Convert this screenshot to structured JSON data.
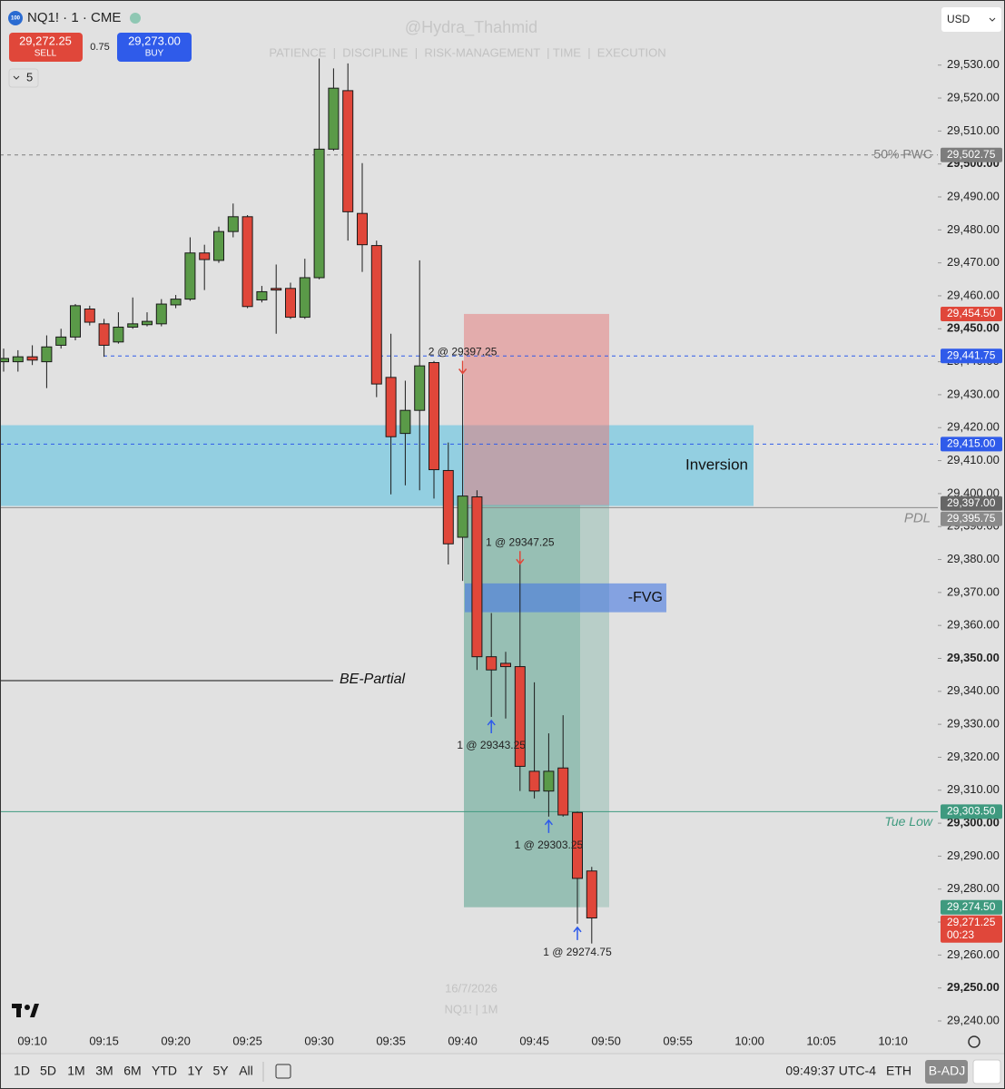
{
  "chart_data": {
    "type": "candlestick",
    "categories": [
      null,
      null,
      "09:10",
      null,
      null,
      null,
      null,
      "09:15",
      null,
      null,
      null,
      null,
      "09:20",
      null,
      null,
      null,
      null,
      "09:25",
      null,
      null,
      null,
      null,
      "09:30",
      null,
      null,
      null,
      null,
      "09:35",
      null,
      null,
      null,
      null,
      "09:40",
      null,
      null,
      null,
      null,
      "09:45",
      null,
      null,
      null,
      null,
      "09:50",
      null,
      null,
      null,
      null,
      "09:55",
      null,
      null,
      null,
      null,
      "10:00",
      null,
      null,
      null,
      null,
      "10:05",
      null,
      null,
      null,
      null,
      "10:10"
    ],
    "open": [
      29440,
      29440,
      29441.5,
      29440,
      29445,
      29447.5,
      29456,
      29451.5,
      29446,
      29450.5,
      29451.25,
      29451.5,
      29457.25,
      29459,
      29473,
      29470.75,
      29479.5,
      29484,
      29458.75,
      29462.25,
      29462.25,
      29453.5,
      29465.5,
      29504.5,
      29522.25,
      29485,
      29475.25,
      29435.25,
      29418.25,
      29425.25,
      29439.75,
      29407,
      29386.75,
      29399,
      29350.5,
      29348.5,
      29347.5,
      29315.75,
      29309.75,
      29316.75,
      29303.25,
      29285.5,
      null,
      null,
      null,
      null,
      null,
      null,
      null,
      null,
      null,
      null,
      null,
      null,
      null,
      null,
      null,
      null,
      null,
      null,
      null,
      null,
      null
    ],
    "high": [
      29444,
      29443.5,
      29445,
      29448,
      29450,
      29457.5,
      29457,
      29453,
      29455,
      29459.5,
      29455,
      29459,
      29460.25,
      29477.75,
      29475.5,
      29481,
      29488,
      29484.5,
      29463,
      29469.5,
      29464,
      29471.25,
      29532,
      29529,
      29530.5,
      29500.25,
      29476.75,
      29448.5,
      29434.25,
      29470.75,
      29440.25,
      29415.5,
      29437,
      29401,
      29363.75,
      29352,
      29379.25,
      29342.75,
      29327.25,
      29332.75,
      29303.5,
      29286.75,
      null,
      null,
      null,
      null,
      null,
      null,
      null,
      null,
      null,
      null,
      null,
      null,
      null,
      null,
      null,
      null,
      null,
      null,
      null,
      null,
      null
    ],
    "low": [
      29437,
      29437,
      29439,
      29432,
      29444,
      29446.5,
      29451,
      29441.5,
      29445.5,
      29450,
      29450.75,
      29450.75,
      29456.25,
      29458.5,
      29461.75,
      29470,
      29477.75,
      29456.25,
      29458,
      29448.5,
      29453,
      29453,
      29465,
      29504,
      29476.75,
      29467.25,
      29429.25,
      29399.75,
      29402.5,
      29401,
      29398.5,
      29378.5,
      29373.5,
      29346.5,
      29332.25,
      29331.75,
      29309.75,
      29307.5,
      29302,
      29302,
      29269.5,
      29263.5,
      null,
      null,
      null,
      null,
      null,
      null,
      null,
      null,
      null,
      null,
      null,
      null,
      null,
      null,
      null,
      null,
      null,
      null,
      null,
      null,
      null
    ],
    "close": [
      29441,
      29441.5,
      29440.5,
      29444.5,
      29447.5,
      29457,
      29452,
      29445,
      29450.5,
      29451.5,
      29452.25,
      29457.5,
      29459,
      29473,
      29471,
      29479.5,
      29484,
      29456.75,
      29461.25,
      29461.75,
      29453.5,
      29465.5,
      29504.5,
      29523,
      29485.5,
      29475.5,
      29433.25,
      29417.25,
      29425.25,
      29438.75,
      29407.25,
      29384.75,
      29399.25,
      29350.5,
      29346.5,
      29347.5,
      29317.25,
      29309.75,
      29315.75,
      29302.5,
      29283.25,
      29271.25,
      null,
      null,
      null,
      null,
      null,
      null,
      null,
      null,
      null,
      null,
      null,
      null,
      null,
      null,
      null,
      null,
      null,
      null,
      null,
      null,
      null
    ],
    "up_color": "#5a9a48",
    "down_color": "#e0473a",
    "ylim": [
      29237.25,
      29549.75
    ],
    "yticks": [
      {
        "value": 29240,
        "label": "29,240.00"
      },
      {
        "value": 29250,
        "label": "29,250.00",
        "bold": true
      },
      {
        "value": 29260,
        "label": "29,260.00"
      },
      {
        "value": 29270,
        "label": "29,270.00"
      },
      {
        "value": 29280,
        "label": "29,280.00"
      },
      {
        "value": 29290,
        "label": "29,290.00"
      },
      {
        "value": 29300,
        "label": "29,300.00",
        "bold": true
      },
      {
        "value": 29310,
        "label": "29,310.00"
      },
      {
        "value": 29320,
        "label": "29,320.00"
      },
      {
        "value": 29330,
        "label": "29,330.00"
      },
      {
        "value": 29340,
        "label": "29,340.00"
      },
      {
        "value": 29350,
        "label": "29,350.00",
        "bold": true
      },
      {
        "value": 29360,
        "label": "29,360.00"
      },
      {
        "value": 29370,
        "label": "29,370.00"
      },
      {
        "value": 29380,
        "label": "29,380.00"
      },
      {
        "value": 29390,
        "label": "29,390.00"
      },
      {
        "value": 29400,
        "label": "29,400.00"
      },
      {
        "value": 29410,
        "label": "29,410.00"
      },
      {
        "value": 29420,
        "label": "29,420.00"
      },
      {
        "value": 29430,
        "label": "29,430.00"
      },
      {
        "value": 29440,
        "label": "29,440.00"
      },
      {
        "value": 29450,
        "label": "29,450.00",
        "bold": true
      },
      {
        "value": 29460,
        "label": "29,460.00"
      },
      {
        "value": 29470,
        "label": "29,470.00"
      },
      {
        "value": 29480,
        "label": "29,480.00"
      },
      {
        "value": 29490,
        "label": "29,490.00"
      },
      {
        "value": 29500,
        "label": "29,500.00",
        "bold": true
      },
      {
        "value": 29510,
        "label": "29,510.00"
      },
      {
        "value": 29520,
        "label": "29,520.00"
      },
      {
        "value": 29530,
        "label": "29,530.00"
      }
    ],
    "zones": [
      {
        "name": "Inversion",
        "top": 29420.75,
        "bottom": 29396.25,
        "color": "#93cfe1"
      },
      {
        "top": 29454.5,
        "bottom": 29396.5,
        "color": "rgba(229,120,120,0.5)"
      },
      {
        "top": 29396.5,
        "bottom": 29274.5,
        "color": "rgba(62,150,126,0.45)"
      },
      {
        "name": "-FVG",
        "top": 29372.75,
        "bottom": 29364,
        "color": "rgba(70,120,225,0.6)"
      }
    ],
    "levels": [
      {
        "value": 29502.75,
        "value_label": "29,502.75",
        "label": "50% PWC",
        "color": "#7d7d7d",
        "style": "dashed"
      },
      {
        "value": 29454.5,
        "value_label": "29,454.50",
        "color": "#e0473a",
        "line": false
      },
      {
        "value": 29441.75,
        "value_label": "29,441.75",
        "color": "#2f5bea",
        "style": "dashed"
      },
      {
        "value": 29415,
        "value_label": "29,415.00",
        "color": "#2f5bea",
        "style": "dashed"
      },
      {
        "value": 29397,
        "value_label": "29,397.00",
        "color": "#666666",
        "line": false
      },
      {
        "value": 29395.75,
        "value_label": "29,395.75",
        "label": "PDL",
        "color": "#8a8a8a",
        "style": "solid"
      },
      {
        "value": 29343.25,
        "label": "BE-Partial",
        "color": "#111111",
        "style": "solid"
      },
      {
        "value": 29303.5,
        "value_label": "29,303.50",
        "label": "Tue Low",
        "color": "#3f9a7f",
        "style": "solid"
      },
      {
        "value": 29274.5,
        "value_label": "29,274.50",
        "color": "#3f9a7f",
        "line": false
      },
      {
        "value": 29271.25,
        "value_label": "29,271.25",
        "countdown": "00:23",
        "color": "#e0473a",
        "line": false
      }
    ],
    "trades": [
      {
        "label": "2 @ 29397.25",
        "price": 29397.25,
        "side": "sell",
        "time": "09:40"
      },
      {
        "label": "1 @ 29347.25",
        "price": 29347.25,
        "side": "sell",
        "time": "09:44"
      },
      {
        "label": "1 @ 29343.25",
        "price": 29343.25,
        "side": "buy",
        "time": "09:42"
      },
      {
        "label": "1 @ 29303.25",
        "price": 29303.25,
        "side": "buy",
        "time": "09:46"
      },
      {
        "label": "1 @ 29274.75",
        "price": 29274.75,
        "side": "buy",
        "time": "09:48"
      }
    ]
  },
  "ui": {
    "logo": "100",
    "symbol": "NQ1! · 1 · CME",
    "sell_price": "29,272.25",
    "sell": "SELL",
    "spread": "0.75",
    "buy_price": "29,273.00",
    "buy": "BUY",
    "indicators": "5",
    "currency": "USD",
    "watermark_handle": "@Hydra_Thahmid",
    "watermark_motto": "PATIENCE  |  DISCIPLINE  |  RISK-MANAGEMENT  | TIME  |  EXECUTION",
    "watermark_date": "16/7/2026",
    "watermark_symbol": "NQ1! | 1M",
    "ranges": [
      "1D",
      "5D",
      "1M",
      "3M",
      "6M",
      "YTD",
      "1Y",
      "5Y",
      "All"
    ],
    "clock": "09:49:37 UTC-4",
    "session": "ETH",
    "adjust": "B-ADJ"
  }
}
